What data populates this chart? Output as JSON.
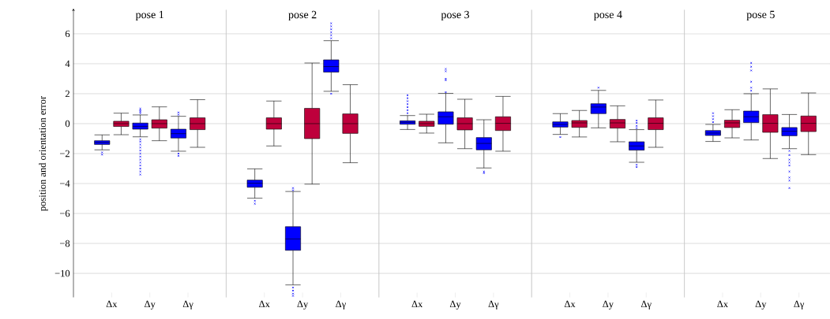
{
  "chart_data": [
    {
      "type": "box",
      "title": "pose 1",
      "ylabel": "position and orientation error",
      "categories": [
        "Δx",
        "Δy",
        "Δγ"
      ],
      "ylim": [
        -11.6,
        7.6
      ],
      "yticks": [
        {
          "value": -10,
          "label": "−10"
        },
        {
          "value": -8,
          "label": "−8"
        },
        {
          "value": -6,
          "label": "−6"
        },
        {
          "value": -4,
          "label": "−4"
        },
        {
          "value": -2,
          "label": "−2"
        },
        0,
        2,
        4,
        6
      ],
      "grid": "y",
      "marker": "cross",
      "series": [
        {
          "color": "#0000ff",
          "boxes": [
            {
              "low": -1.75,
              "q1": -1.39,
              "median": -1.26,
              "q3": -1.14,
              "high": -0.75,
              "outliers": [
                -1.92,
                -2.07
              ]
            },
            {
              "low": -0.88,
              "q1": -0.37,
              "median": -0.18,
              "q3": 0.04,
              "high": 0.58,
              "outliers": [
                0.7,
                0.8,
                0.9,
                1.0,
                -1.05,
                -1.2,
                -1.4,
                -1.6,
                -1.8,
                -2.0,
                -2.2,
                -2.4,
                -2.6,
                -2.8,
                -3.0,
                -3.2,
                -3.4
              ]
            },
            {
              "low": -1.84,
              "q1": -0.96,
              "median": -0.67,
              "q3": -0.37,
              "high": 0.49,
              "outliers": [
                0.6,
                0.75,
                -2.0,
                -2.15
              ]
            }
          ]
        },
        {
          "color": "#be003c",
          "boxes": [
            {
              "low": -0.74,
              "q1": -0.19,
              "median": 0,
              "q3": 0.16,
              "high": 0.7
            },
            {
              "low": -1.14,
              "q1": -0.3,
              "median": 0,
              "q3": 0.26,
              "high": 1.12
            },
            {
              "low": -1.58,
              "q1": -0.4,
              "median": 0,
              "q3": 0.39,
              "high": 1.6
            }
          ]
        }
      ]
    },
    {
      "type": "box",
      "title": "pose 2",
      "categories": [
        "Δx",
        "Δy",
        "Δγ"
      ],
      "ylim": [
        -11.6,
        7.6
      ],
      "yticks": [
        -10,
        -8,
        -6,
        -4,
        -2,
        0,
        2,
        4,
        6
      ],
      "tick_labels": "x",
      "grid": "y",
      "marker": "cross",
      "series": [
        {
          "color": "#0000ff",
          "boxes": [
            {
              "low": -4.98,
              "q1": -4.25,
              "median": -3.98,
              "q3": -3.77,
              "high": -3.02,
              "outliers": [
                -5.15,
                -5.35
              ]
            },
            {
              "low": -10.77,
              "q1": -8.46,
              "median": -7.7,
              "q3": -6.88,
              "high": -4.53,
              "outliers": [
                -4.3,
                -4.45,
                -10.95,
                -11.15,
                -11.35,
                -11.5
              ]
            },
            {
              "low": 2.16,
              "q1": 3.44,
              "median": 3.81,
              "q3": 4.26,
              "high": 5.54,
              "outliers": [
                5.7,
                5.9,
                6.1,
                6.3,
                6.5,
                6.7,
                2.0
              ]
            }
          ]
        },
        {
          "color": "#be003c",
          "boxes": [
            {
              "low": -1.49,
              "q1": -0.37,
              "median": 0,
              "q3": 0.39,
              "high": 1.51
            },
            {
              "low": -4.04,
              "q1": -1.0,
              "median": 0,
              "q3": 1.02,
              "high": 4.05
            },
            {
              "low": -2.61,
              "q1": -0.65,
              "median": 0,
              "q3": 0.65,
              "high": 2.6
            }
          ]
        }
      ]
    },
    {
      "type": "box",
      "title": "pose 3",
      "categories": [
        "Δx",
        "Δy",
        "Δγ"
      ],
      "ylim": [
        -11.6,
        7.6
      ],
      "yticks": [
        -10,
        -8,
        -6,
        -4,
        -2,
        0,
        2,
        4,
        6
      ],
      "tick_labels": "x",
      "grid": "y",
      "marker": "cross",
      "series": [
        {
          "color": "#0000ff",
          "boxes": [
            {
              "low": -0.39,
              "q1": -0.04,
              "median": 0.09,
              "q3": 0.19,
              "high": 0.54,
              "outliers": [
                0.7,
                0.9,
                1.1,
                1.3,
                1.5,
                1.7,
                1.9
              ]
            },
            {
              "low": -1.28,
              "q1": -0.04,
              "median": 0.46,
              "q3": 0.79,
              "high": 2.02,
              "outliers": [
                2.1,
                2.9,
                3.0,
                3.5,
                3.65
              ]
            },
            {
              "low": -2.96,
              "q1": -1.75,
              "median": -1.32,
              "q3": -0.93,
              "high": 0.26,
              "outliers": [
                -3.2,
                -3.3
              ]
            }
          ]
        },
        {
          "color": "#be003c",
          "boxes": [
            {
              "low": -0.63,
              "q1": -0.18,
              "median": 0,
              "q3": 0.16,
              "high": 0.63
            },
            {
              "low": -1.67,
              "q1": -0.42,
              "median": 0,
              "q3": 0.39,
              "high": 1.63
            },
            {
              "low": -1.84,
              "q1": -0.46,
              "median": 0.02,
              "q3": 0.46,
              "high": 1.82
            }
          ]
        }
      ]
    },
    {
      "type": "box",
      "title": "pose 4",
      "categories": [
        "Δx",
        "Δy",
        "Δγ"
      ],
      "ylim": [
        -11.6,
        7.6
      ],
      "yticks": [
        -10,
        -8,
        -6,
        -4,
        -2,
        0,
        2,
        4,
        6
      ],
      "tick_labels": "x",
      "grid": "y",
      "marker": "cross",
      "series": [
        {
          "color": "#0000ff",
          "boxes": [
            {
              "low": -0.72,
              "q1": -0.23,
              "median": -0.05,
              "q3": 0.12,
              "high": 0.67,
              "outliers": [
                -0.9
              ]
            },
            {
              "low": -0.28,
              "q1": 0.67,
              "median": 1.11,
              "q3": 1.33,
              "high": 2.22,
              "outliers": [
                2.4
              ]
            },
            {
              "low": -2.58,
              "q1": -1.77,
              "median": -1.49,
              "q3": -1.21,
              "high": -0.4,
              "outliers": [
                -0.3,
                -0.15,
                0.05,
                0.2,
                -2.75,
                -2.9
              ]
            }
          ]
        },
        {
          "color": "#be003c",
          "boxes": [
            {
              "low": -0.89,
              "q1": -0.25,
              "median": 0.05,
              "q3": 0.21,
              "high": 0.88
            },
            {
              "low": -1.21,
              "q1": -0.3,
              "median": 0.05,
              "q3": 0.28,
              "high": 1.19
            },
            {
              "low": -1.58,
              "q1": -0.4,
              "median": 0.02,
              "q3": 0.39,
              "high": 1.58
            }
          ]
        }
      ]
    },
    {
      "type": "box",
      "title": "pose 5",
      "categories": [
        "Δx",
        "Δy",
        "Δγ"
      ],
      "ylim": [
        -11.6,
        7.6
      ],
      "yticks": [
        -10,
        -8,
        -6,
        -4,
        -2,
        0,
        2,
        4,
        6
      ],
      "tick_labels": "x",
      "grid": "y",
      "marker": "cross",
      "series": [
        {
          "color": "#0000ff",
          "boxes": [
            {
              "low": -1.19,
              "q1": -0.79,
              "median": -0.63,
              "q3": -0.46,
              "high": -0.05,
              "outliers": [
                0.1,
                0.3,
                0.5,
                0.7
              ]
            },
            {
              "low": -1.09,
              "q1": 0.07,
              "median": 0.46,
              "q3": 0.84,
              "high": 2.0,
              "outliers": [
                2.2,
                2.4,
                2.8,
                3.55,
                3.8,
                4.05
              ]
            },
            {
              "low": -1.67,
              "q1": -0.81,
              "median": -0.51,
              "q3": -0.26,
              "high": 0.61,
              "outliers": [
                -1.82,
                -2.1,
                -2.4,
                -2.6,
                -2.8,
                -3.2,
                -3.6,
                -3.8,
                -4.3
              ]
            }
          ]
        },
        {
          "color": "#be003c",
          "boxes": [
            {
              "low": -0.95,
              "q1": -0.26,
              "median": 0.05,
              "q3": 0.23,
              "high": 0.93
            },
            {
              "low": -2.33,
              "q1": -0.58,
              "median": 0.02,
              "q3": 0.6,
              "high": 2.32
            },
            {
              "low": -2.07,
              "q1": -0.53,
              "median": 0.02,
              "q3": 0.51,
              "high": 2.05
            }
          ]
        }
      ]
    }
  ]
}
